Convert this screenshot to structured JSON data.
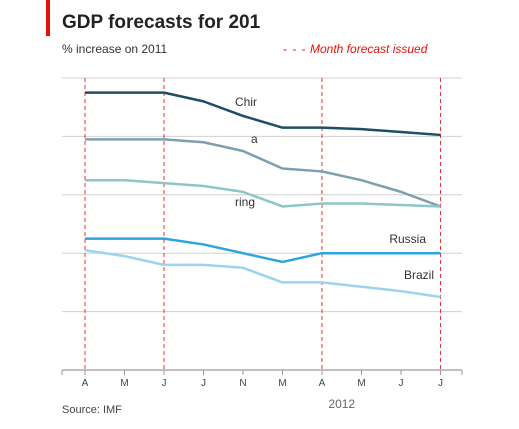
{
  "header": {
    "title": "GDP forecasts for 201",
    "subtitle": "% increase on 2011",
    "legend_dash": "- - -",
    "legend_label": "Month forecast issued",
    "legend_color": "#e3120b"
  },
  "source": "Source: IMF",
  "chart_data": {
    "type": "line",
    "x": [
      "A",
      "M",
      "J",
      "J",
      "N",
      "M",
      "A",
      "M",
      "J",
      "J"
    ],
    "x_year_label": "2012",
    "forecast_months": [
      "A",
      "J",
      "A",
      "J"
    ],
    "series": [
      {
        "name": "Chir",
        "color": "#1d4e63",
        "values": [
          9.5,
          9.5,
          9.5,
          9.2,
          8.7,
          8.3,
          8.3,
          8.25,
          8.15,
          8.05
        ]
      },
      {
        "name": "a",
        "color": "#7d9fb0",
        "values": [
          7.9,
          7.9,
          7.9,
          7.8,
          7.5,
          6.9,
          6.8,
          6.5,
          6.1,
          5.6
        ]
      },
      {
        "name": "ring",
        "color": "#8cc6c8",
        "values": [
          6.5,
          6.5,
          6.4,
          6.3,
          6.1,
          5.6,
          5.7,
          5.7,
          5.65,
          5.6
        ]
      },
      {
        "name": "Russia",
        "color": "#2ca6da",
        "values": [
          4.5,
          4.5,
          4.5,
          4.3,
          4.0,
          3.7,
          4.0,
          4.0,
          4.0,
          4.0
        ]
      },
      {
        "name": "Brazil",
        "color": "#9dd3ec",
        "values": [
          4.1,
          3.9,
          3.6,
          3.6,
          3.5,
          3.0,
          3.0,
          2.85,
          2.7,
          2.5
        ]
      }
    ],
    "ylim": [
      0,
      10
    ],
    "grid": true,
    "legend": "top-right"
  },
  "colors": {
    "accent": "#e3120b",
    "gridline": "#d0d0d0",
    "axis": "#9a9a9a"
  }
}
